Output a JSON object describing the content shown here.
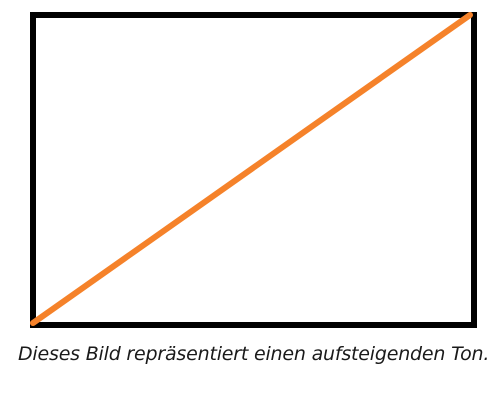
{
  "diagram": {
    "frame_color": "#000000",
    "line_color": "#f5822a",
    "line_direction": "ascending"
  },
  "caption": {
    "text": "Dieses Bild repräsentiert einen aufsteigenden Ton."
  }
}
